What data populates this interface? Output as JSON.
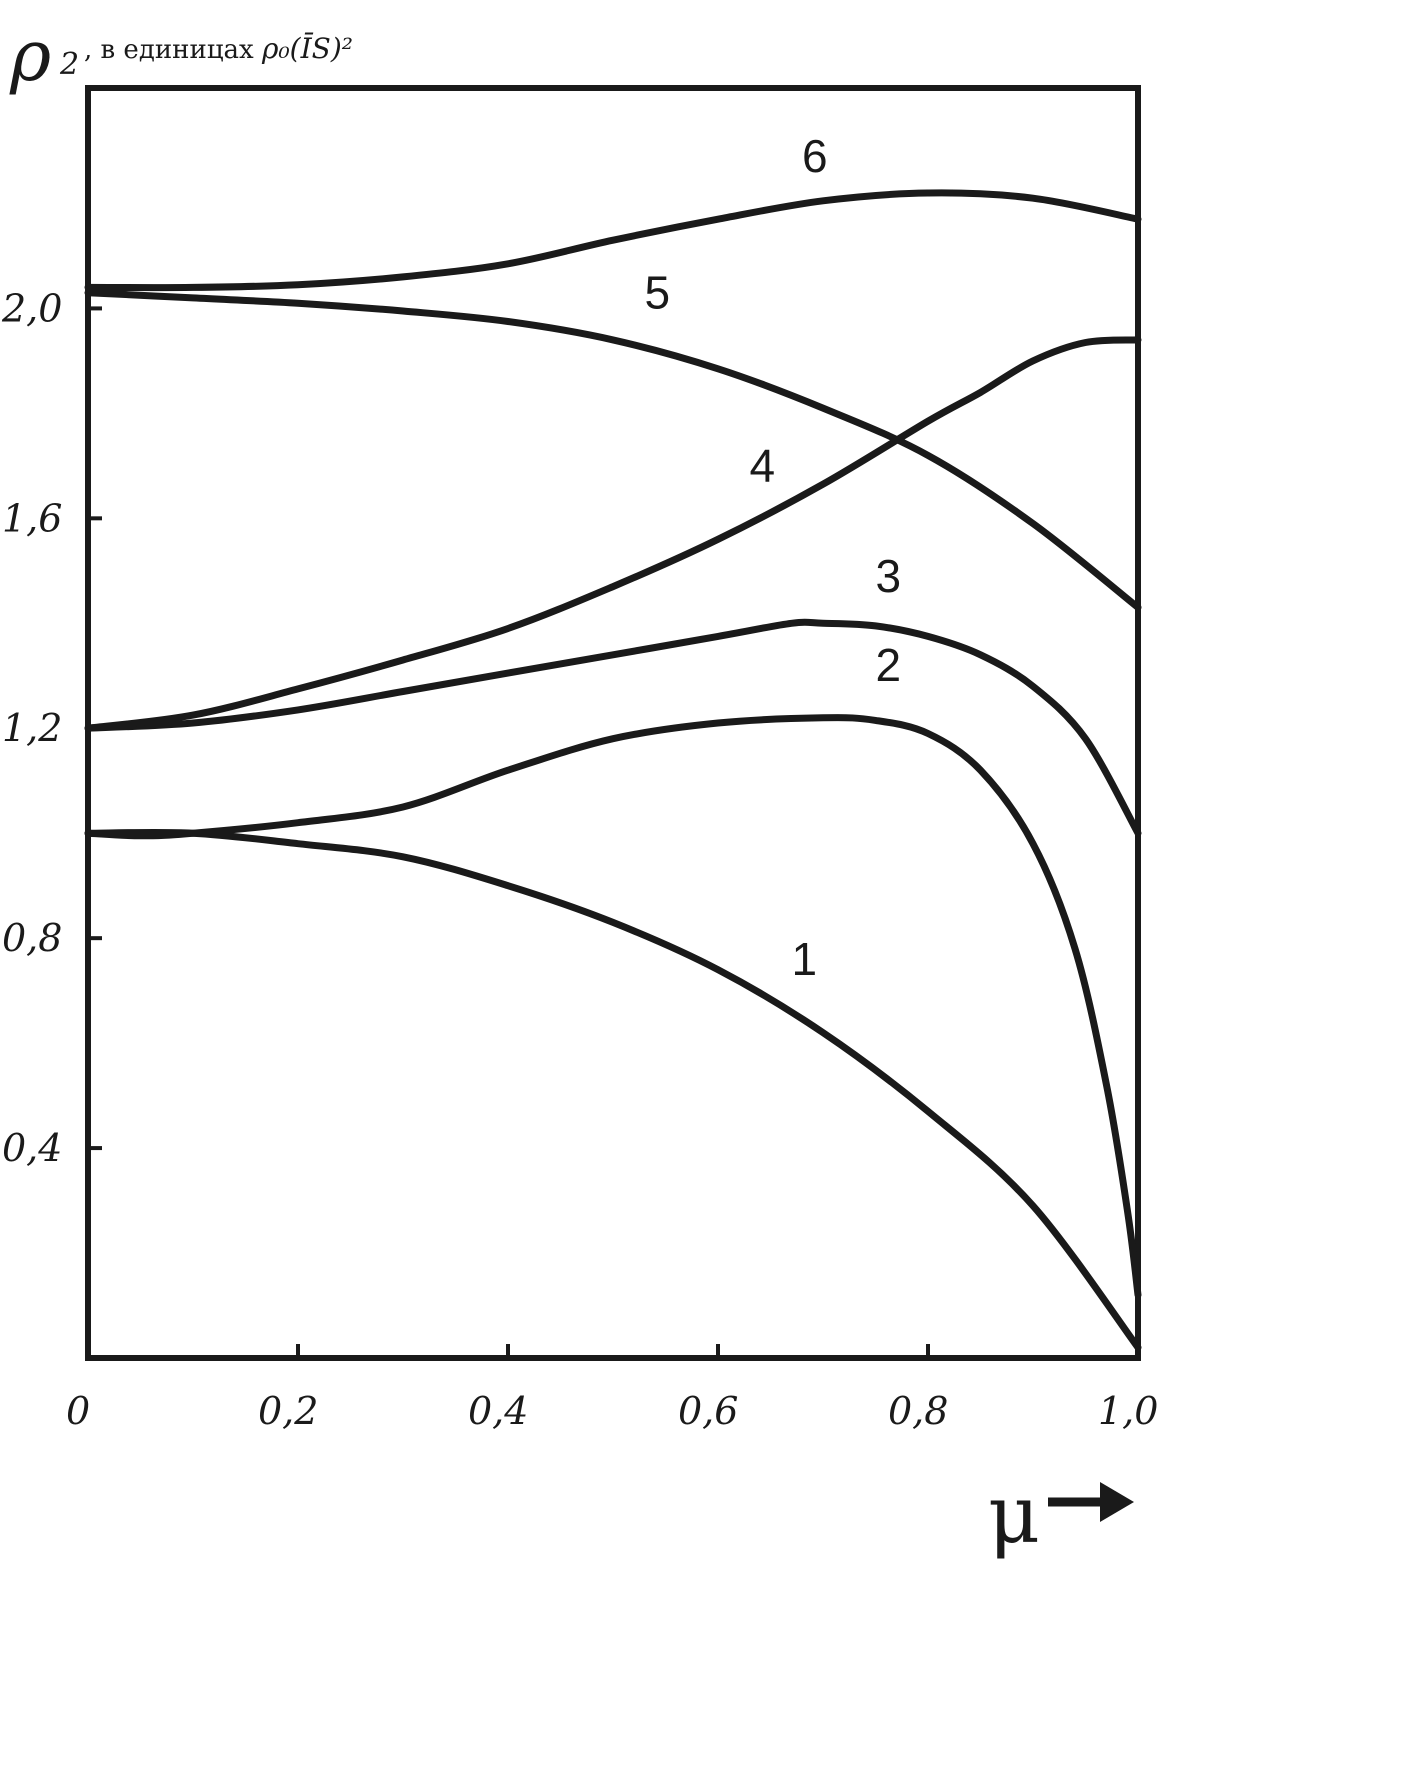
{
  "chart_data": {
    "type": "line",
    "ylabel": {
      "symbol": "ρ",
      "subscript": "2",
      "text": ", в единицах",
      "units": "ρ₀(ĪS)²"
    },
    "xlabel": "μ",
    "xlim": [
      0,
      1.0
    ],
    "ylim": [
      0,
      2.42
    ],
    "x_ticks": [
      {
        "value": 0,
        "label": "0"
      },
      {
        "value": 0.2,
        "label": "0,2"
      },
      {
        "value": 0.4,
        "label": "0,4"
      },
      {
        "value": 0.6,
        "label": "0,6"
      },
      {
        "value": 0.8,
        "label": "0,8"
      },
      {
        "value": 1.0,
        "label": "1,0"
      }
    ],
    "y_ticks": [
      {
        "value": 0.4,
        "label": "0,4"
      },
      {
        "value": 0.8,
        "label": "0,8"
      },
      {
        "value": 1.2,
        "label": "1,2"
      },
      {
        "value": 1.6,
        "label": "1,6"
      },
      {
        "value": 2.0,
        "label": "2,0"
      }
    ],
    "grid": false,
    "legend": "none",
    "series": [
      {
        "label": "1",
        "label_at": [
          0.67,
          0.73
        ],
        "points": [
          [
            0,
            1.0
          ],
          [
            0.1,
            1.0
          ],
          [
            0.2,
            0.98
          ],
          [
            0.3,
            0.955
          ],
          [
            0.4,
            0.9
          ],
          [
            0.5,
            0.83
          ],
          [
            0.6,
            0.74
          ],
          [
            0.7,
            0.62
          ],
          [
            0.8,
            0.47
          ],
          [
            0.9,
            0.29
          ],
          [
            1.0,
            0.02
          ]
        ]
      },
      {
        "label": "2",
        "label_at": [
          0.75,
          1.29
        ],
        "points": [
          [
            0,
            1.0
          ],
          [
            0.05,
            0.995
          ],
          [
            0.1,
            1.0
          ],
          [
            0.2,
            1.02
          ],
          [
            0.3,
            1.05
          ],
          [
            0.4,
            1.12
          ],
          [
            0.5,
            1.18
          ],
          [
            0.6,
            1.21
          ],
          [
            0.7,
            1.22
          ],
          [
            0.75,
            1.215
          ],
          [
            0.8,
            1.19
          ],
          [
            0.85,
            1.12
          ],
          [
            0.9,
            0.98
          ],
          [
            0.94,
            0.78
          ],
          [
            0.97,
            0.52
          ],
          [
            0.99,
            0.28
          ],
          [
            1.0,
            0.12
          ]
        ]
      },
      {
        "label": "3",
        "label_at": [
          0.75,
          1.46
        ],
        "points": [
          [
            0,
            1.2
          ],
          [
            0.1,
            1.21
          ],
          [
            0.2,
            1.235
          ],
          [
            0.3,
            1.27
          ],
          [
            0.4,
            1.305
          ],
          [
            0.5,
            1.34
          ],
          [
            0.6,
            1.375
          ],
          [
            0.67,
            1.4
          ],
          [
            0.7,
            1.4
          ],
          [
            0.75,
            1.395
          ],
          [
            0.8,
            1.375
          ],
          [
            0.85,
            1.34
          ],
          [
            0.9,
            1.28
          ],
          [
            0.95,
            1.18
          ],
          [
            1.0,
            1.0
          ]
        ]
      },
      {
        "label": "4",
        "label_at": [
          0.63,
          1.67
        ],
        "points": [
          [
            0,
            1.2
          ],
          [
            0.1,
            1.225
          ],
          [
            0.2,
            1.275
          ],
          [
            0.3,
            1.33
          ],
          [
            0.4,
            1.39
          ],
          [
            0.5,
            1.47
          ],
          [
            0.6,
            1.56
          ],
          [
            0.7,
            1.665
          ],
          [
            0.8,
            1.785
          ],
          [
            0.85,
            1.84
          ],
          [
            0.9,
            1.9
          ],
          [
            0.95,
            1.935
          ],
          [
            1.0,
            1.94
          ]
        ]
      },
      {
        "label": "5",
        "label_at": [
          0.53,
          2.0
        ],
        "points": [
          [
            0,
            2.03
          ],
          [
            0.1,
            2.02
          ],
          [
            0.2,
            2.01
          ],
          [
            0.3,
            1.995
          ],
          [
            0.4,
            1.975
          ],
          [
            0.5,
            1.94
          ],
          [
            0.6,
            1.885
          ],
          [
            0.7,
            1.81
          ],
          [
            0.8,
            1.72
          ],
          [
            0.9,
            1.59
          ],
          [
            1.0,
            1.43
          ]
        ]
      },
      {
        "label": "6",
        "label_at": [
          0.68,
          2.26
        ],
        "points": [
          [
            0,
            2.04
          ],
          [
            0.1,
            2.04
          ],
          [
            0.2,
            2.045
          ],
          [
            0.3,
            2.06
          ],
          [
            0.4,
            2.085
          ],
          [
            0.5,
            2.13
          ],
          [
            0.6,
            2.17
          ],
          [
            0.7,
            2.205
          ],
          [
            0.8,
            2.22
          ],
          [
            0.9,
            2.21
          ],
          [
            1.0,
            2.17
          ]
        ]
      }
    ]
  }
}
